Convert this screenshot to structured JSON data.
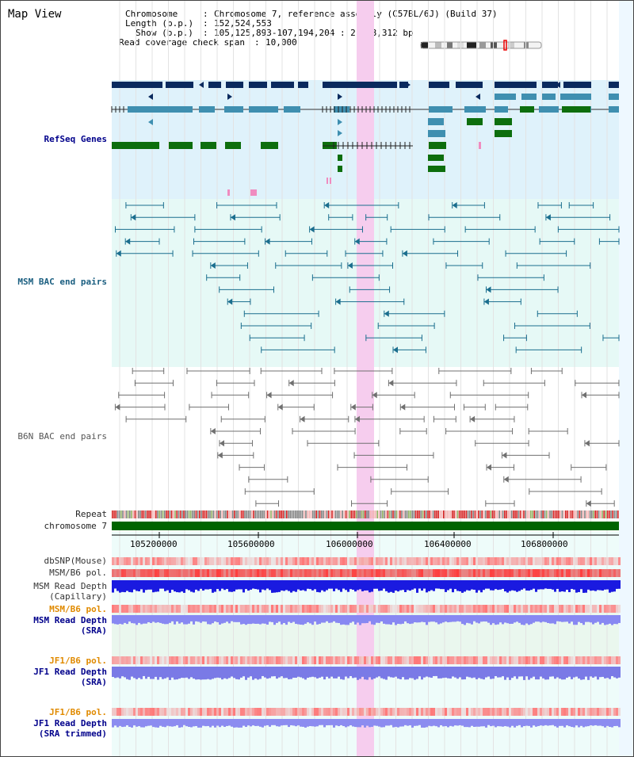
{
  "header": {
    "title": "Map View",
    "info_lines": [
      {
        "key": "Chromosome",
        "value": "Chromosome 7, reference assembly (C57BL/6J) (Build 37)"
      },
      {
        "key": "Length (b.p.)",
        "value": "152,524,553"
      },
      {
        "key": "Show (b.p.)",
        "value": "105,125,893-107,194,204 : 2,068,312 bp"
      },
      {
        "key": "Read coverage check span",
        "value": "10,000"
      }
    ]
  },
  "tracks": {
    "refseq_label": "RefSeq Genes",
    "msm_bac_label": "MSM BAC end pairs",
    "b6n_bac_label": "B6N BAC end pairs",
    "repeat_label": "Repeat",
    "chromosome_label": "chromosome 7",
    "dbsnp_label": "dbSNP(Mouse)",
    "msm_b6_pol_label": "MSM/B6 pol.",
    "msm_depth_cap_label_1": "MSM Read Depth",
    "msm_depth_cap_label_2": "(Capillary)",
    "msm_b6_pol2_label": "MSM/B6 pol.",
    "msm_depth_sra_label_1": "MSM Read Depth",
    "msm_depth_sra_label_2": "(SRA)",
    "jf1_pol_label": "JF1/B6 pol.",
    "jf1_depth_sra_label_1": "JF1 Read Depth",
    "jf1_depth_sra_label_2": "(SRA)",
    "jf1_pol2_label": "JF1/B6 pol.",
    "jf1_depth_trim_label_1": "JF1 Read Depth",
    "jf1_depth_trim_label_2": "(SRA trimmed)"
  },
  "axis": {
    "ticks": [
      "105200000",
      "105600000",
      "106000000",
      "106400000",
      "106800000"
    ]
  },
  "colors": {
    "refseq_dark": "#0a2a5e",
    "refseq_mid": "#3f8fb0",
    "refseq_green": "#0d6e0d",
    "msm_bac": "#1a6e8e",
    "b6n_bac": "#707070",
    "highlight": "#f5c8ee",
    "label_blue": "#00008b",
    "label_orange": "#e08a00"
  }
}
